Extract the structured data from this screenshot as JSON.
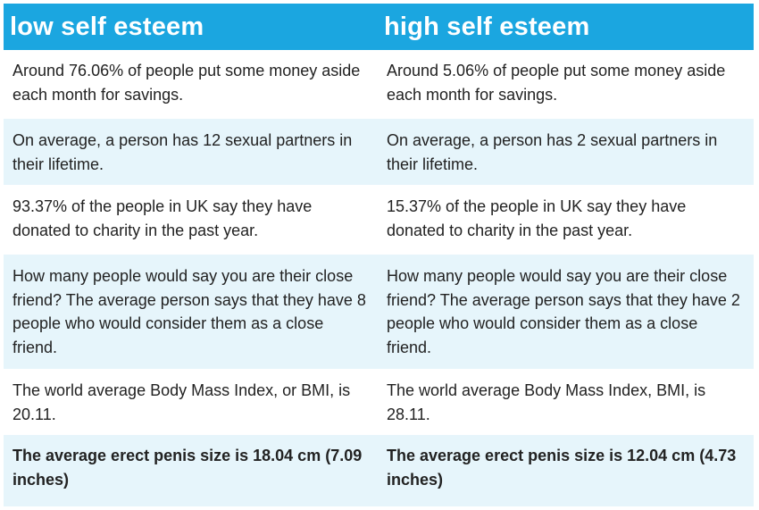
{
  "header": {
    "left": "low self esteem",
    "right": "high self esteem"
  },
  "rows": [
    {
      "left": "Around 76.06% of people put some money aside each month for savings.",
      "right": "Around 5.06% of people put some money aside each month for savings."
    },
    {
      "left": "On average, a person has 12 sexual partners in their lifetime.",
      "right": "On average, a person has 2 sexual partners in their lifetime."
    },
    {
      "left": "93.37% of the people in UK say they have donated to charity in the past year.",
      "right": "15.37% of the people in UK say they have donated to charity in the past year."
    },
    {
      "left": "How many people would say you are their close friend? The average person says that they have 8 people who would consider them as a close friend.",
      "right": "How many people would say you are their close friend? The average person says that they have 2 people who would consider them as a close friend."
    },
    {
      "left": "The world average Body Mass Index, or BMI, is 20.11.",
      "right": "The world average Body Mass Index, BMI, is 28.11."
    },
    {
      "left": "The average erect penis size is 18.04 cm (7.09 inches)",
      "right": "The average erect penis size is 12.04 cm (4.73 inches)"
    }
  ],
  "colors": {
    "header_bg": "#1ba6e0",
    "alt_row_bg": "#e6f5fb"
  }
}
